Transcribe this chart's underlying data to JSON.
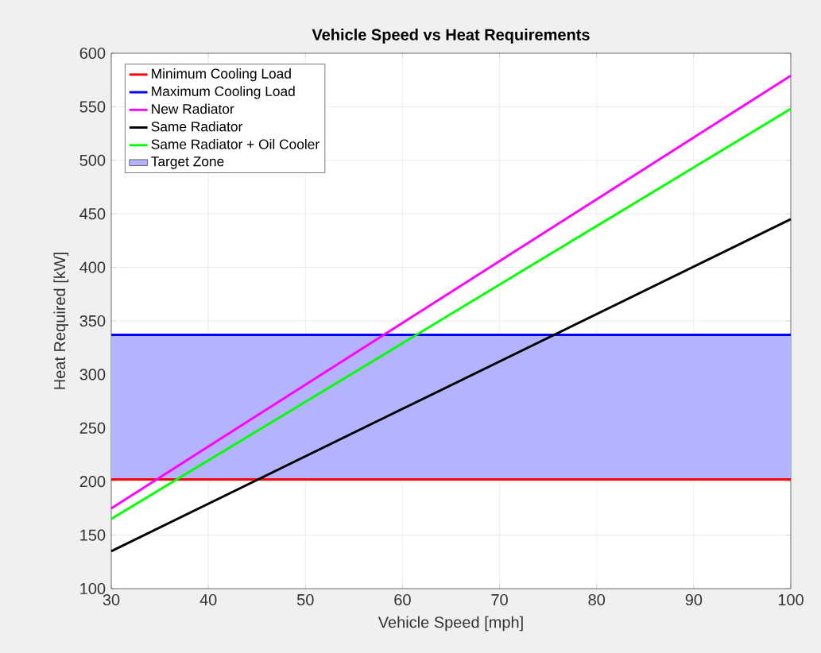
{
  "chart_data": {
    "type": "line",
    "title": "Vehicle Speed vs Heat Requirements",
    "xlabel": "Vehicle Speed [mph]",
    "ylabel": "Heat Required [kW]",
    "xlim": [
      30,
      100
    ],
    "ylim": [
      100,
      600
    ],
    "xticks": [
      30,
      40,
      50,
      60,
      70,
      80,
      90,
      100
    ],
    "yticks": [
      100,
      150,
      200,
      250,
      300,
      350,
      400,
      450,
      500,
      550,
      600
    ],
    "grid": true,
    "legend": "top left",
    "x": [
      30,
      100
    ],
    "series": [
      {
        "name": "Minimum Cooling Load",
        "color": "#ff0000",
        "values": [
          202,
          202
        ]
      },
      {
        "name": "Maximum Cooling Load",
        "color": "#0000ff",
        "values": [
          337,
          337
        ]
      },
      {
        "name": "New Radiator",
        "color": "#ff00ff",
        "values": [
          175,
          579
        ]
      },
      {
        "name": "Same Radiator",
        "color": "#000000",
        "values": [
          135,
          445
        ]
      },
      {
        "name": "Same Radiator + Oil Cooler",
        "color": "#00ff00",
        "values": [
          165,
          548
        ]
      }
    ],
    "bands": [
      {
        "axis": "y",
        "from": 202,
        "to": 337,
        "label": "Target Zone",
        "color": "#b3b3ff"
      }
    ]
  }
}
